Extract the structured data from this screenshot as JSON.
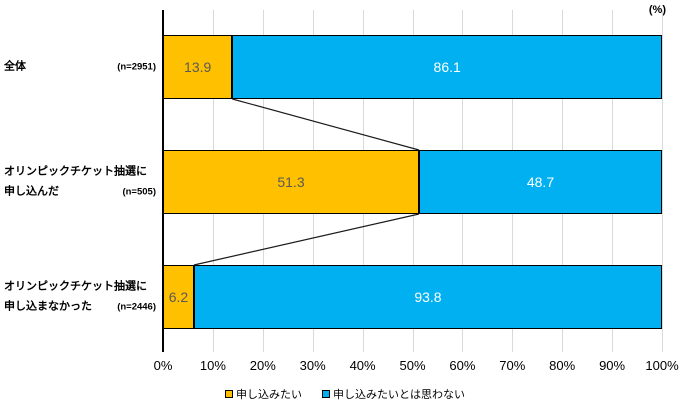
{
  "unit_label": "(%)",
  "chart_data": {
    "type": "bar",
    "orientation": "horizontal",
    "stacked": true,
    "title": "",
    "unit": "(%)",
    "xlim": [
      0,
      100
    ],
    "x_ticks": [
      "0%",
      "10%",
      "20%",
      "30%",
      "40%",
      "50%",
      "60%",
      "70%",
      "80%",
      "90%",
      "100%"
    ],
    "grid": true,
    "legend_position": "bottom",
    "categories": [
      {
        "lines": [
          "全体"
        ],
        "n": "(n=2951)"
      },
      {
        "lines": [
          "オリンピックチケット抽選に",
          "申し込んだ"
        ],
        "n": "(n=505)"
      },
      {
        "lines": [
          "オリンピックチケット抽選に",
          "申し込まなかった"
        ],
        "n": "(n=2446)"
      }
    ],
    "series": [
      {
        "name": "申し込みたい",
        "color": "#FFC000",
        "value_label_color": "#595959",
        "values": [
          13.9,
          51.3,
          6.2
        ]
      },
      {
        "name": "申し込みたいとは思わない",
        "color": "#00B0F0",
        "value_label_color": "#FFFFFF",
        "values": [
          86.1,
          48.7,
          93.8
        ]
      }
    ],
    "connector_lines": true
  },
  "colors": {
    "grid": "#D9D9D9",
    "axis": "#000000",
    "bar_border": "#000000",
    "connector": "#1A1A1A"
  }
}
